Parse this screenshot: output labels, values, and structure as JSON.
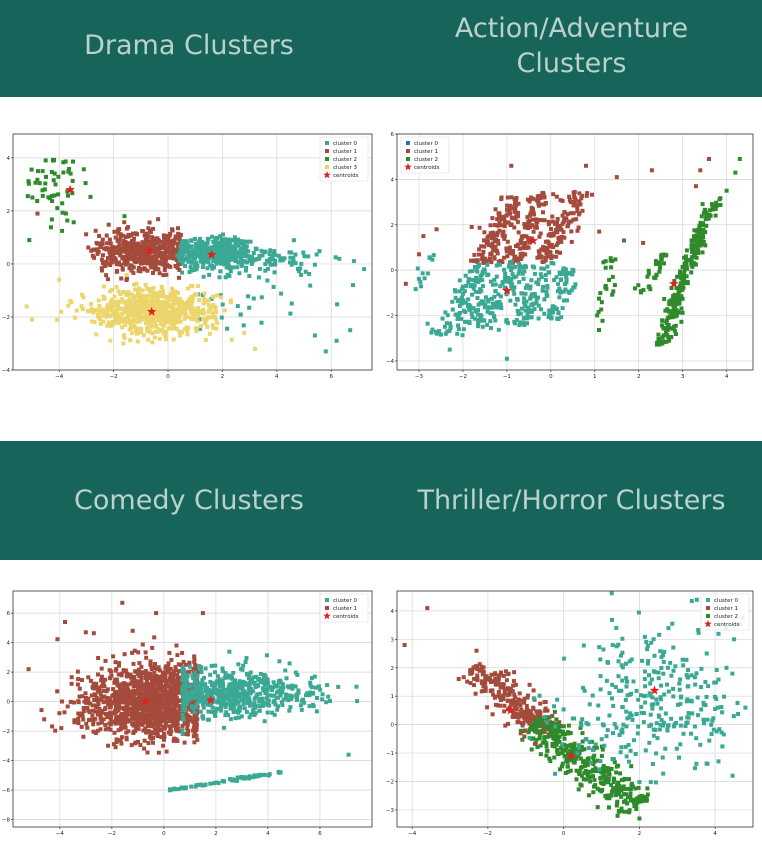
{
  "page": {
    "headings": [
      "Drama Clusters",
      "Action/Adventure\nClusters",
      "Comedy Clusters",
      "Thriller/Horror Clusters"
    ]
  },
  "colors": {
    "band": "#17645a",
    "heading_text": "#b9d2cc",
    "teal": "#3aa894",
    "brown": "#a44b3c",
    "green": "#2e8a2a",
    "yellow": "#ecd56b",
    "blue": "#1f77b4",
    "centroid": "#e21f1f"
  },
  "chart_data": [
    {
      "type": "scatter",
      "title": "",
      "xlabel": "",
      "ylabel": "",
      "xlim": [
        -5.7,
        7.5
      ],
      "ylim": [
        -4,
        4.9
      ],
      "xticks": [
        -4,
        -2,
        0,
        2,
        4,
        6
      ],
      "yticks": [
        -4,
        -2,
        0,
        2,
        4
      ],
      "grid": true,
      "legend_position": "top-right",
      "legend": [
        {
          "label": "cluster 0",
          "color": "teal",
          "marker": "square"
        },
        {
          "label": "cluster 1",
          "color": "brown",
          "marker": "square"
        },
        {
          "label": "cluster 2",
          "color": "green",
          "marker": "square"
        },
        {
          "label": "cluster 3",
          "color": "yellow",
          "marker": "square"
        },
        {
          "label": "centroids",
          "color": "centroid",
          "marker": "star"
        }
      ],
      "series": [
        {
          "color": "brown",
          "clouds": [
            {
              "n": 520,
              "cx": -0.9,
              "cy": 0.5,
              "sx": 0.85,
              "sy": 0.4,
              "xmin": -3.4,
              "xmax": 0.5
            }
          ]
        },
        {
          "color": "teal",
          "clouds": [
            {
              "n": 380,
              "cx": 1.6,
              "cy": 0.4,
              "sx": 0.7,
              "sy": 0.28,
              "xmin": 0.4
            },
            {
              "n": 90,
              "cx": 3.8,
              "cy": 0.1,
              "sx": 1.1,
              "sy": 0.3
            },
            {
              "n": 25,
              "cx": 3.2,
              "cy": -1.8,
              "sx": 1.4,
              "sy": 0.5
            }
          ]
        },
        {
          "color": "yellow",
          "clouds": [
            {
              "n": 700,
              "cx": -0.6,
              "cy": -1.8,
              "sx": 1.1,
              "sy": 0.42
            }
          ]
        },
        {
          "color": "green",
          "clouds": [
            {
              "n": 55,
              "cx": -4.2,
              "cy": 2.9,
              "sx": 0.6,
              "sy": 0.7
            }
          ]
        }
      ],
      "extra_points": [
        {
          "color": "teal",
          "points": [
            [
              5.8,
              -3.3
            ],
            [
              6.7,
              -2.5
            ],
            [
              6.2,
              -2.9
            ],
            [
              5.4,
              -2.7
            ],
            [
              4.9,
              0.0
            ],
            [
              6.8,
              -0.8
            ]
          ]
        },
        {
          "color": "yellow",
          "points": [
            [
              -5.0,
              -2.1
            ],
            [
              -5.2,
              -1.6
            ],
            [
              -4.0,
              -0.6
            ],
            [
              3.2,
              -3.2
            ],
            [
              2.8,
              -2.6
            ]
          ]
        },
        {
          "color": "green",
          "points": [
            [
              -5.1,
              0.9
            ],
            [
              -1.6,
              1.8
            ]
          ]
        },
        {
          "color": "brown",
          "points": [
            [
              -4.8,
              1.9
            ]
          ]
        }
      ],
      "centroids": [
        [
          -0.7,
          0.5
        ],
        [
          1.6,
          0.35
        ],
        [
          -0.6,
          -1.8
        ],
        [
          -3.6,
          2.8
        ]
      ]
    },
    {
      "type": "scatter",
      "title": "",
      "xlabel": "",
      "ylabel": "",
      "xlim": [
        -3.5,
        4.6
      ],
      "ylim": [
        -4.4,
        6
      ],
      "xticks": [
        -3,
        -2,
        -1,
        0,
        1,
        2,
        3,
        4
      ],
      "yticks": [
        -4,
        -2,
        0,
        2,
        4,
        6
      ],
      "grid": true,
      "legend_position": "top-left",
      "legend": [
        {
          "label": "cluster 0",
          "color": "blue",
          "marker": "square"
        },
        {
          "label": "cluster 1",
          "color": "brown",
          "marker": "square"
        },
        {
          "label": "cluster 2",
          "color": "green",
          "marker": "square"
        },
        {
          "label": "centroids",
          "color": "centroid",
          "marker": "star"
        }
      ],
      "series": [
        {
          "color": "brown",
          "bands": [
            {
              "n": 120,
              "x0": -1.6,
              "y0": 0.3,
              "x1": -0.8,
              "y1": 3.2,
              "w": 0.15
            },
            {
              "n": 120,
              "x0": -0.9,
              "y0": 0.3,
              "x1": -0.1,
              "y1": 3.4,
              "w": 0.15
            },
            {
              "n": 120,
              "x0": -0.2,
              "y0": 0.3,
              "x1": 0.7,
              "y1": 3.5,
              "w": 0.15
            }
          ]
        },
        {
          "color": "teal",
          "bands": [
            {
              "n": 120,
              "x0": -2.4,
              "y0": -2.9,
              "x1": -1.4,
              "y1": 0.3,
              "w": 0.2
            },
            {
              "n": 110,
              "x0": -1.6,
              "y0": -2.5,
              "x1": -0.7,
              "y1": 0.3,
              "w": 0.2
            },
            {
              "n": 90,
              "x0": -0.8,
              "y0": -2.4,
              "x1": 0.1,
              "y1": 0.3,
              "w": 0.2
            },
            {
              "n": 60,
              "x0": 0.0,
              "y0": -2.2,
              "x1": 0.4,
              "y1": 0.1,
              "w": 0.15
            },
            {
              "n": 12,
              "x0": -3.1,
              "y0": -1.0,
              "x1": -2.7,
              "y1": 0.9,
              "w": 0.1
            }
          ]
        },
        {
          "color": "green",
          "bands": [
            {
              "n": 240,
              "x0": 2.5,
              "y0": -3.3,
              "x1": 3.7,
              "y1": 3.2,
              "w": 0.1
            },
            {
              "n": 30,
              "x0": 2.0,
              "y0": -1.0,
              "x1": 2.6,
              "y1": 0.7,
              "w": 0.1
            },
            {
              "n": 25,
              "x0": 1.0,
              "y0": -2.8,
              "x1": 1.6,
              "y1": 1.6,
              "w": 0.1
            }
          ]
        }
      ],
      "extra_points": [
        {
          "color": "brown",
          "points": [
            [
              -2.6,
              1.8
            ],
            [
              -1.8,
              1.9
            ],
            [
              -2.9,
              1.5
            ],
            [
              0.8,
              4.6
            ],
            [
              1.5,
              4.1
            ],
            [
              2.3,
              4.4
            ],
            [
              3.6,
              4.9
            ],
            [
              3.4,
              4.4
            ],
            [
              -0.9,
              4.6
            ],
            [
              1.1,
              1.7
            ],
            [
              2.1,
              1.2
            ],
            [
              3.3,
              3.7
            ],
            [
              -3.0,
              0.7
            ],
            [
              -3.3,
              -0.6
            ]
          ]
        },
        {
          "color": "green",
          "points": [
            [
              4.2,
              4.3
            ],
            [
              4.3,
              4.9
            ],
            [
              4.0,
              3.5
            ]
          ]
        },
        {
          "color": "teal",
          "points": [
            [
              -1.0,
              -3.9
            ],
            [
              -2.3,
              -3.5
            ]
          ]
        }
      ],
      "centroids": [
        [
          -0.4,
          1.3
        ],
        [
          -1.0,
          -0.9
        ],
        [
          2.8,
          -0.6
        ]
      ]
    },
    {
      "type": "scatter",
      "title": "",
      "xlabel": "",
      "ylabel": "",
      "xlim": [
        -5.8,
        8.0
      ],
      "ylim": [
        -8.5,
        7.5
      ],
      "xticks": [
        -4,
        -2,
        0,
        2,
        4,
        6
      ],
      "yticks": [
        -8,
        -6,
        -4,
        -2,
        0,
        2,
        4,
        6
      ],
      "grid": true,
      "legend_position": "top-right",
      "legend": [
        {
          "label": "cluster 0",
          "color": "teal",
          "marker": "square"
        },
        {
          "label": "cluster 1",
          "color": "brown",
          "marker": "square"
        },
        {
          "label": "centroids",
          "color": "centroid",
          "marker": "star"
        }
      ],
      "series": [
        {
          "color": "brown",
          "clouds": [
            {
              "n": 1300,
              "cx": -0.5,
              "cy": 0.0,
              "sx": 1.3,
              "sy": 1.3,
              "xmax": 1.3
            }
          ]
        },
        {
          "color": "teal",
          "clouds": [
            {
              "n": 520,
              "cx": 2.4,
              "cy": 0.6,
              "sx": 1.3,
              "sy": 0.85,
              "xmin": 0.7
            },
            {
              "n": 80,
              "cx": 4.6,
              "cy": 0.6,
              "sx": 1.0,
              "sy": 0.5
            }
          ],
          "bands": [
            {
              "n": 60,
              "x0": 0.2,
              "y0": -6.0,
              "x1": 4.5,
              "y1": -4.8,
              "w": 0.05
            }
          ]
        }
      ],
      "extra_points": [
        {
          "color": "brown",
          "points": [
            [
              -1.6,
              6.7
            ],
            [
              -0.3,
              6.0
            ],
            [
              -3.8,
              5.4
            ],
            [
              -5.2,
              2.2
            ],
            [
              -4.1,
              0.7
            ],
            [
              -3.0,
              4.7
            ],
            [
              -1.2,
              4.8
            ],
            [
              -4.6,
              -1.2
            ],
            [
              1.5,
              6.0
            ]
          ]
        },
        {
          "color": "teal",
          "points": [
            [
              7.1,
              -3.6
            ],
            [
              6.7,
              1.0
            ],
            [
              5.8,
              1.7
            ],
            [
              6.1,
              0.5
            ]
          ]
        }
      ],
      "centroids": [
        [
          -0.7,
          0.0
        ],
        [
          1.8,
          0.1
        ]
      ]
    },
    {
      "type": "scatter",
      "title": "",
      "xlabel": "",
      "ylabel": "",
      "xlim": [
        -4.4,
        5.0
      ],
      "ylim": [
        -3.6,
        4.7
      ],
      "xticks": [
        -4,
        -2,
        0,
        2,
        4
      ],
      "yticks": [
        -3,
        -2,
        -1,
        0,
        1,
        2,
        3,
        4
      ],
      "grid": true,
      "legend_position": "top-right",
      "legend": [
        {
          "label": "cluster 0",
          "color": "teal",
          "marker": "square"
        },
        {
          "label": "cluster 1",
          "color": "brown",
          "marker": "square"
        },
        {
          "label": "cluster 2",
          "color": "green",
          "marker": "square"
        },
        {
          "label": "centroids",
          "color": "centroid",
          "marker": "star"
        }
      ],
      "series": [
        {
          "color": "brown",
          "bands": [
            {
              "n": 260,
              "x0": -2.4,
              "y0": 2.0,
              "x1": -0.3,
              "y1": -0.4,
              "w": 0.25
            }
          ]
        },
        {
          "color": "green",
          "bands": [
            {
              "n": 380,
              "x0": -0.8,
              "y0": 0.1,
              "x1": 2.0,
              "y1": -2.9,
              "w": 0.3
            }
          ]
        },
        {
          "color": "teal",
          "clouds": [
            {
              "n": 260,
              "cx": 2.7,
              "cy": 1.0,
              "sx": 1.1,
              "sy": 1.2
            },
            {
              "n": 60,
              "cx": 1.5,
              "cy": -0.3,
              "sx": 1.0,
              "sy": 0.6
            }
          ]
        }
      ],
      "extra_points": [
        {
          "color": "brown",
          "points": [
            [
              -4.2,
              2.8
            ],
            [
              -3.6,
              4.1
            ],
            [
              -2.3,
              2.6
            ],
            [
              -0.9,
              1.4
            ]
          ]
        },
        {
          "color": "teal",
          "points": [
            [
              4.8,
              0.6
            ],
            [
              4.5,
              3.0
            ],
            [
              4.3,
              2.0
            ],
            [
              0.6,
              -0.5
            ]
          ]
        },
        {
          "color": "green",
          "points": [
            [
              2.0,
              -3.3
            ],
            [
              0.9,
              -2.9
            ]
          ]
        }
      ],
      "centroids": [
        [
          -1.4,
          0.5
        ],
        [
          0.2,
          -1.1
        ],
        [
          2.4,
          1.2
        ]
      ]
    }
  ]
}
